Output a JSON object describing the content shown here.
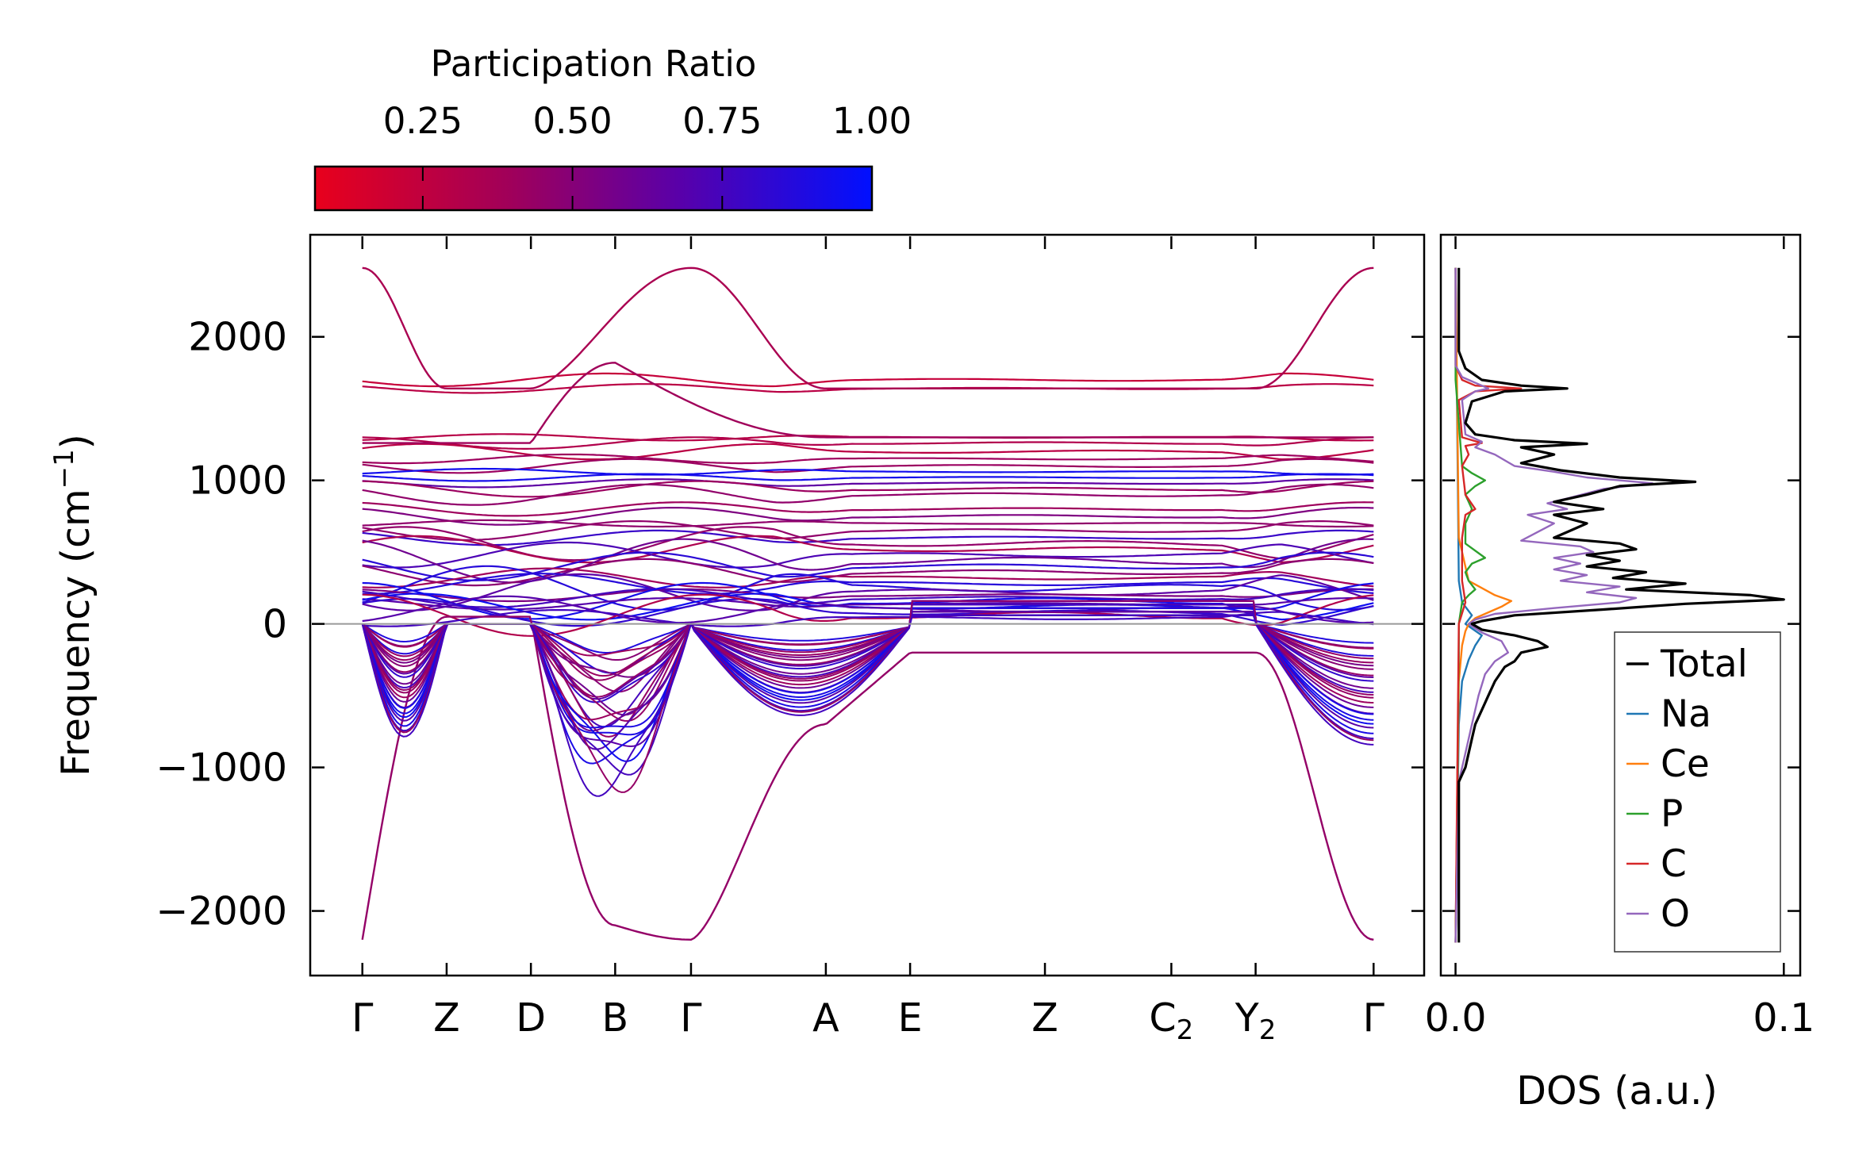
{
  "chart_data": [
    {
      "type": "line",
      "name": "phonon-band-structure",
      "ylabel": "Frequency (cm⁻¹)",
      "ylim": [
        -2450,
        2700
      ],
      "yticks": [
        2000,
        1000,
        0,
        -1000,
        -2000
      ],
      "ytick_labels": [
        "2000",
        "1000",
        "0",
        "−1000",
        "−2000"
      ],
      "kpath": [
        {
          "label": "Γ",
          "x": 0.0
        },
        {
          "label": "Z",
          "x": 0.5
        },
        {
          "label": "D",
          "x": 1.0
        },
        {
          "label": "B",
          "x": 1.5
        },
        {
          "label": "Γ",
          "x": 1.95
        },
        {
          "label": "A",
          "x": 2.75
        },
        {
          "label": "E",
          "x": 3.25
        },
        {
          "label": "Z",
          "x": 4.05
        },
        {
          "label": "C₂",
          "x": 4.8
        },
        {
          "label": "Y₂",
          "x": 5.3
        },
        {
          "label": "Γ",
          "x": 6.0
        }
      ],
      "xlim": [
        -0.3,
        6.3
      ],
      "zero_line": 0,
      "flat_bands": [
        1700,
        1640,
        1300,
        1260,
        1200,
        1150,
        1100,
        1060,
        1020,
        980,
        940,
        900,
        800,
        750,
        700,
        650,
        600,
        560,
        520,
        480,
        440,
        400,
        360,
        320,
        280,
        250,
        220,
        200,
        180,
        160,
        140,
        120,
        100,
        80,
        60,
        40
      ],
      "colored_by": "participation ratio"
    },
    {
      "type": "line",
      "name": "density-of-states",
      "xlabel": "DOS (a.u.)",
      "xlim": [
        -0.004,
        0.105
      ],
      "xticks": [
        0.0,
        0.1
      ],
      "xtick_labels": [
        "0.0",
        "0.1"
      ],
      "ylim": [
        -2450,
        2700
      ],
      "series": [
        {
          "name": "Total",
          "color": "#000000",
          "points": [
            [
              2480,
              0.001
            ],
            [
              1900,
              0.001
            ],
            [
              1780,
              0.003
            ],
            [
              1700,
              0.008
            ],
            [
              1660,
              0.02
            ],
            [
              1640,
              0.034
            ],
            [
              1620,
              0.015
            ],
            [
              1550,
              0.005
            ],
            [
              1400,
              0.003
            ],
            [
              1320,
              0.006
            ],
            [
              1280,
              0.018
            ],
            [
              1255,
              0.04
            ],
            [
              1230,
              0.02
            ],
            [
              1180,
              0.03
            ],
            [
              1120,
              0.02
            ],
            [
              1070,
              0.032
            ],
            [
              1020,
              0.05
            ],
            [
              990,
              0.073
            ],
            [
              960,
              0.05
            ],
            [
              900,
              0.04
            ],
            [
              850,
              0.03
            ],
            [
              800,
              0.045
            ],
            [
              760,
              0.03
            ],
            [
              700,
              0.04
            ],
            [
              650,
              0.035
            ],
            [
              600,
              0.03
            ],
            [
              560,
              0.05
            ],
            [
              520,
              0.055
            ],
            [
              480,
              0.04
            ],
            [
              440,
              0.05
            ],
            [
              400,
              0.04
            ],
            [
              360,
              0.058
            ],
            [
              320,
              0.048
            ],
            [
              280,
              0.07
            ],
            [
              240,
              0.052
            ],
            [
              200,
              0.09
            ],
            [
              170,
              0.1
            ],
            [
              140,
              0.07
            ],
            [
              100,
              0.045
            ],
            [
              60,
              0.018
            ],
            [
              20,
              0.008
            ],
            [
              0,
              0.005
            ],
            [
              -40,
              0.008
            ],
            [
              -80,
              0.018
            ],
            [
              -120,
              0.025
            ],
            [
              -160,
              0.028
            ],
            [
              -200,
              0.02
            ],
            [
              -260,
              0.018
            ],
            [
              -300,
              0.015
            ],
            [
              -400,
              0.012
            ],
            [
              -500,
              0.01
            ],
            [
              -600,
              0.008
            ],
            [
              -700,
              0.006
            ],
            [
              -800,
              0.005
            ],
            [
              -900,
              0.004
            ],
            [
              -1000,
              0.003
            ],
            [
              -1100,
              0.001
            ],
            [
              -1400,
              0.001
            ],
            [
              -2000,
              0.001
            ],
            [
              -2220,
              0.001
            ]
          ]
        },
        {
          "name": "Na",
          "color": "#1f77b4",
          "points": [
            [
              2480,
              0.0
            ],
            [
              300,
              0.001
            ],
            [
              150,
              0.002
            ],
            [
              60,
              0.005
            ],
            [
              0,
              0.003
            ],
            [
              -80,
              0.008
            ],
            [
              -150,
              0.006
            ],
            [
              -250,
              0.004
            ],
            [
              -400,
              0.002
            ],
            [
              -700,
              0.001
            ],
            [
              -2220,
              0.0
            ]
          ]
        },
        {
          "name": "Ce",
          "color": "#ff7f0e",
          "points": [
            [
              2480,
              0.0
            ],
            [
              600,
              0.001
            ],
            [
              300,
              0.004
            ],
            [
              200,
              0.012
            ],
            [
              160,
              0.017
            ],
            [
              120,
              0.014
            ],
            [
              80,
              0.01
            ],
            [
              40,
              0.006
            ],
            [
              0,
              0.004
            ],
            [
              -50,
              0.003
            ],
            [
              -150,
              0.002
            ],
            [
              -400,
              0.001
            ],
            [
              -2220,
              0.0
            ]
          ]
        },
        {
          "name": "P",
          "color": "#2ca02c",
          "points": [
            [
              2480,
              0.0
            ],
            [
              1700,
              0.0
            ],
            [
              1100,
              0.002
            ],
            [
              1050,
              0.005
            ],
            [
              1000,
              0.009
            ],
            [
              960,
              0.006
            ],
            [
              900,
              0.003
            ],
            [
              850,
              0.004
            ],
            [
              800,
              0.005
            ],
            [
              700,
              0.003
            ],
            [
              560,
              0.003
            ],
            [
              460,
              0.009
            ],
            [
              420,
              0.005
            ],
            [
              360,
              0.003
            ],
            [
              300,
              0.004
            ],
            [
              240,
              0.006
            ],
            [
              200,
              0.004
            ],
            [
              150,
              0.002
            ],
            [
              0,
              0.001
            ],
            [
              -200,
              0.001
            ],
            [
              -2220,
              0.0
            ]
          ]
        },
        {
          "name": "C",
          "color": "#d62728",
          "points": [
            [
              2480,
              0.0
            ],
            [
              1800,
              0.0
            ],
            [
              1700,
              0.002
            ],
            [
              1660,
              0.006
            ],
            [
              1640,
              0.02
            ],
            [
              1620,
              0.006
            ],
            [
              1560,
              0.001
            ],
            [
              1300,
              0.002
            ],
            [
              1260,
              0.008
            ],
            [
              1240,
              0.003
            ],
            [
              1180,
              0.004
            ],
            [
              1100,
              0.002
            ],
            [
              900,
              0.003
            ],
            [
              800,
              0.006
            ],
            [
              760,
              0.003
            ],
            [
              600,
              0.002
            ],
            [
              300,
              0.002
            ],
            [
              150,
              0.003
            ],
            [
              0,
              0.001
            ],
            [
              -2220,
              0.0
            ]
          ]
        },
        {
          "name": "O",
          "color": "#9467bd",
          "points": [
            [
              2480,
              0.0
            ],
            [
              1800,
              0.0
            ],
            [
              1720,
              0.002
            ],
            [
              1660,
              0.008
            ],
            [
              1640,
              0.01
            ],
            [
              1620,
              0.006
            ],
            [
              1560,
              0.002
            ],
            [
              1320,
              0.003
            ],
            [
              1270,
              0.008
            ],
            [
              1230,
              0.006
            ],
            [
              1180,
              0.012
            ],
            [
              1100,
              0.018
            ],
            [
              1060,
              0.03
            ],
            [
              1020,
              0.04
            ],
            [
              980,
              0.06
            ],
            [
              940,
              0.045
            ],
            [
              880,
              0.035
            ],
            [
              840,
              0.028
            ],
            [
              800,
              0.034
            ],
            [
              760,
              0.022
            ],
            [
              700,
              0.03
            ],
            [
              640,
              0.025
            ],
            [
              580,
              0.02
            ],
            [
              540,
              0.038
            ],
            [
              500,
              0.042
            ],
            [
              460,
              0.03
            ],
            [
              420,
              0.038
            ],
            [
              380,
              0.03
            ],
            [
              340,
              0.04
            ],
            [
              300,
              0.032
            ],
            [
              260,
              0.05
            ],
            [
              220,
              0.04
            ],
            [
              180,
              0.055
            ],
            [
              150,
              0.05
            ],
            [
              110,
              0.03
            ],
            [
              70,
              0.012
            ],
            [
              30,
              0.006
            ],
            [
              0,
              0.004
            ],
            [
              -60,
              0.008
            ],
            [
              -120,
              0.014
            ],
            [
              -200,
              0.016
            ],
            [
              -260,
              0.012
            ],
            [
              -350,
              0.009
            ],
            [
              -500,
              0.007
            ],
            [
              -700,
              0.005
            ],
            [
              -900,
              0.003
            ],
            [
              -1100,
              0.001
            ],
            [
              -2220,
              0.0
            ]
          ]
        }
      ],
      "legend": [
        "Total",
        "Na",
        "Ce",
        "P",
        "C",
        "O"
      ],
      "legend_position": "lower-right"
    }
  ],
  "colorbar": {
    "title": "Participation Ratio",
    "tick_labels": [
      "0.25",
      "0.50",
      "0.75",
      "1.00"
    ],
    "ticks": [
      0.25,
      0.5,
      0.75,
      1.0
    ],
    "range": [
      0.07,
      1.0
    ],
    "color_low": "#e8001c",
    "color_high": "#0010ff"
  }
}
